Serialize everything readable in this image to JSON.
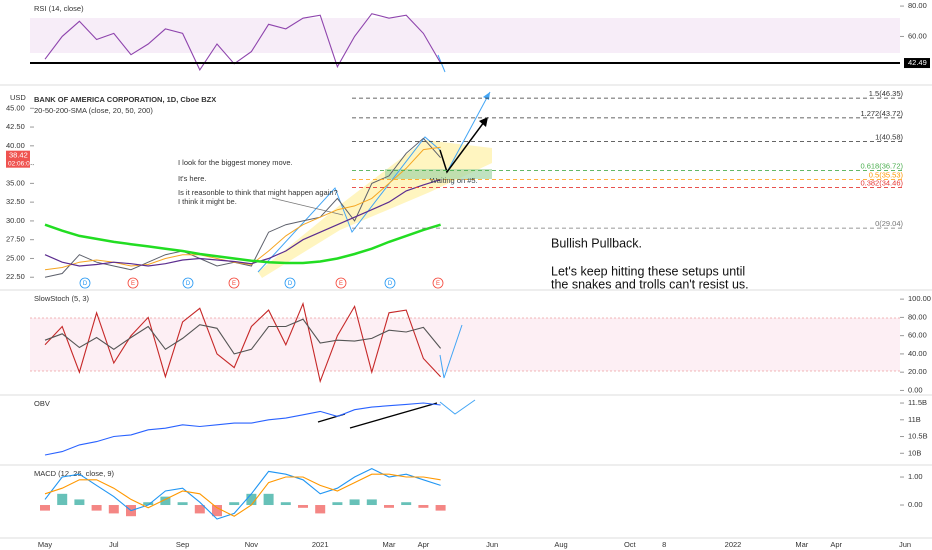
{
  "chart_data": [
    {
      "type": "line",
      "title": "RSI (14, close)",
      "series": [
        {
          "color": "#8e44ad",
          "values": [
            45,
            60,
            70,
            58,
            62,
            48,
            55,
            65,
            62,
            38,
            55,
            42,
            50,
            68,
            65,
            72,
            74,
            40,
            60,
            75,
            72,
            74,
            62,
            42.49,
            null,
            null,
            null,
            null,
            null,
            null,
            null,
            null,
            null,
            null,
            null,
            null,
            null,
            null,
            null,
            null,
            null,
            null,
            null,
            null,
            null,
            null,
            null,
            null,
            null,
            null,
            null
          ]
        }
      ],
      "ylim": [
        30,
        84
      ],
      "yticks": [
        {
          "value": 80,
          "label": "80.00"
        },
        {
          "value": 60,
          "label": "60.00"
        }
      ],
      "last_value": 42.49
    },
    {
      "type": "line",
      "title": "BANK OF AMERICA CORPORATION, 1D, Cboe BZX",
      "subtitle": "20-50-200-SMA (close, 20, 50, 200)",
      "currency": "USD",
      "series": [
        {
          "color": "#5d606b",
          "values": [
            22.5,
            23,
            25.5,
            24.5,
            24,
            23.5,
            24.5,
            25.5,
            26,
            25,
            24,
            24.5,
            24,
            28.5,
            29.5,
            30,
            30.5,
            33,
            30,
            35,
            36,
            39,
            41,
            38.42,
            null,
            null,
            null,
            null,
            null,
            null,
            null,
            null,
            null,
            null,
            null,
            null,
            null,
            null,
            null,
            null,
            null,
            null,
            null,
            null,
            null,
            null,
            null,
            null,
            null,
            null,
            null
          ]
        },
        {
          "color": "#f5a623",
          "values": [
            23.5,
            23.8,
            24.5,
            24.8,
            24.5,
            24,
            24.2,
            25,
            25.5,
            25.5,
            25,
            24.5,
            24.2,
            26,
            28,
            29.5,
            30.5,
            31.5,
            32,
            33,
            35,
            37,
            39.5,
            39.8,
            null,
            null,
            null,
            null,
            null,
            null,
            null,
            null,
            null,
            null,
            null,
            null,
            null,
            null,
            null,
            null,
            null,
            null,
            null,
            null,
            null,
            null,
            null,
            null,
            null,
            null,
            null
          ]
        },
        {
          "color": "#5b2c8f",
          "values": [
            25.5,
            24.5,
            24,
            24.2,
            24.5,
            24.3,
            24,
            24.3,
            24.8,
            25,
            24.8,
            24.6,
            24.3,
            25,
            26,
            27.5,
            28.5,
            29.5,
            30.5,
            31.5,
            32.5,
            34,
            34.8,
            35.5,
            null,
            null,
            null,
            null,
            null,
            null,
            null,
            null,
            null,
            null,
            null,
            null,
            null,
            null,
            null,
            null,
            null,
            null,
            null,
            null,
            null,
            null,
            null,
            null,
            null,
            null,
            null
          ]
        },
        {
          "color": "#22dd22",
          "values": [
            29.5,
            28.7,
            28,
            27.6,
            27.2,
            26.9,
            26.6,
            26.3,
            26,
            25.6,
            25.3,
            25,
            24.7,
            24.5,
            24.4,
            24.4,
            24.6,
            25,
            25.6,
            26.3,
            27.2,
            28,
            28.8,
            29.5,
            null,
            null,
            null,
            null,
            null,
            null,
            null,
            null,
            null,
            null,
            null,
            null,
            null,
            null,
            null,
            null,
            null,
            null,
            null,
            null,
            null,
            null,
            null,
            null,
            null,
            null,
            null
          ]
        }
      ],
      "ylim": [
        20.8,
        47.7
      ],
      "yticks": [
        {
          "value": 45,
          "label": "45.00"
        },
        {
          "value": 42.5,
          "label": "42.50"
        },
        {
          "value": 40,
          "label": "40.00"
        },
        {
          "value": 37.5,
          "label": "37.50"
        },
        {
          "value": 35,
          "label": "35.00"
        },
        {
          "value": 32.5,
          "label": "32.50"
        },
        {
          "value": 30,
          "label": "30.00"
        },
        {
          "value": 27.5,
          "label": "27.50"
        },
        {
          "value": 25,
          "label": "25.00"
        },
        {
          "value": 22.5,
          "label": "22.50"
        }
      ],
      "last_value": 38.42,
      "countdown": "02:06:03",
      "fib_levels": [
        {
          "label": "1.5(46.35)",
          "value": 46.35,
          "color": "#333333"
        },
        {
          "label": "1.272(43.72)",
          "value": 43.72,
          "color": "#333333"
        },
        {
          "label": "1(40.58)",
          "value": 40.58,
          "color": "#333333"
        },
        {
          "label": "0.618(36.72)",
          "value": 36.72,
          "color": "#4caf50"
        },
        {
          "label": "0.5(35.53)",
          "value": 35.53,
          "color": "#ff9800"
        },
        {
          "label": "0.382(34.46)",
          "value": 34.46,
          "color": "#e53935"
        },
        {
          "label": "0(29.04)",
          "value": 29.04,
          "color": "#777777"
        }
      ],
      "events": [
        "D",
        "E",
        "D",
        "E",
        "D",
        "E",
        "D",
        "E"
      ],
      "annotations": [
        "I look for the biggest money move.",
        "It's here.",
        "Is it reasonble to think that might happen again?",
        "I think it might be.",
        "Waiting on #5.",
        "Bullish Pullback.",
        "Let's keep hitting these setups until",
        "the snakes and trolls can't resist us."
      ]
    },
    {
      "type": "line",
      "title": "SlowStoch (5, 3)",
      "series": [
        {
          "color": "#c62828",
          "values": [
            50,
            70,
            20,
            85,
            30,
            60,
            80,
            15,
            75,
            90,
            40,
            25,
            70,
            88,
            50,
            95,
            10,
            60,
            92,
            20,
            85,
            88,
            35,
            15,
            null,
            null,
            null,
            null,
            null,
            null,
            null,
            null,
            null,
            null,
            null,
            null,
            null,
            null,
            null,
            null,
            null,
            null,
            null,
            null,
            null,
            null,
            null,
            null,
            null,
            null,
            null
          ]
        },
        {
          "color": "#555555",
          "values": [
            55,
            62,
            47,
            58,
            45,
            58,
            70,
            45,
            57,
            72,
            68,
            40,
            45,
            70,
            70,
            78,
            52,
            55,
            54,
            57,
            66,
            64,
            69,
            46,
            null,
            null,
            null,
            null,
            null,
            null,
            null,
            null,
            null,
            null,
            null,
            null,
            null,
            null,
            null,
            null,
            null,
            null,
            null,
            null,
            null,
            null,
            null,
            null,
            null,
            null,
            null
          ]
        }
      ],
      "ylim": [
        -5,
        110
      ],
      "yticks": [
        {
          "value": 100,
          "label": "100.00"
        },
        {
          "value": 80,
          "label": "80.00"
        },
        {
          "value": 60,
          "label": "60.00"
        },
        {
          "value": 40,
          "label": "40.00"
        },
        {
          "value": 20,
          "label": "20.00"
        },
        {
          "value": 0,
          "label": "0.00"
        }
      ]
    },
    {
      "type": "line",
      "title": "OBV",
      "series": [
        {
          "color": "#2962ff",
          "values": [
            9.95,
            10.05,
            10.25,
            10.35,
            10.5,
            10.55,
            10.7,
            10.75,
            10.85,
            10.8,
            10.85,
            10.9,
            10.9,
            11.0,
            11.05,
            11.15,
            11.25,
            11.1,
            11.3,
            11.38,
            11.42,
            11.46,
            11.5,
            11.44,
            null,
            null,
            null,
            null,
            null,
            null,
            null,
            null,
            null,
            null,
            null,
            null,
            null,
            null,
            null,
            null,
            null,
            null,
            null,
            null,
            null,
            null,
            null,
            null,
            null,
            null,
            null
          ]
        }
      ],
      "ylim": [
        9.65,
        11.74
      ],
      "yticks": [
        {
          "value": 11.5,
          "label": "11.5B"
        },
        {
          "value": 11,
          "label": "11B"
        },
        {
          "value": 10.5,
          "label": "10.5B"
        },
        {
          "value": 10,
          "label": "10B"
        }
      ]
    },
    {
      "type": "line",
      "title": "MACD (12, 26, close, 9)",
      "categories": [
        "May",
        null,
        null,
        null,
        "Jul",
        null,
        null,
        null,
        "Sep",
        null,
        null,
        null,
        "Nov",
        null,
        null,
        null,
        "2021",
        null,
        null,
        null,
        "Mar",
        null,
        "Apr",
        null,
        null,
        null,
        "Jun",
        null,
        null,
        null,
        "Aug",
        null,
        null,
        null,
        "Oct",
        null,
        "8",
        null,
        null,
        null,
        "2022",
        null,
        null,
        null,
        "Mar",
        null,
        "Apr",
        null,
        null,
        null,
        "Jun"
      ],
      "series": [
        {
          "style": "histogram",
          "positive_color": "#26a69a",
          "negative_color": "#ef5350",
          "values": [
            -0.2,
            0.4,
            0.2,
            -0.2,
            -0.3,
            -0.4,
            0.1,
            0.3,
            0.1,
            -0.3,
            -0.4,
            0.1,
            0.4,
            0.4,
            0.1,
            -0.1,
            -0.3,
            0.1,
            0.2,
            0.2,
            -0.1,
            0.1,
            -0.1,
            -0.2,
            null,
            null,
            null,
            null,
            null,
            null,
            null,
            null,
            null,
            null,
            null,
            null,
            null,
            null,
            null,
            null,
            null,
            null,
            null,
            null,
            null,
            null,
            null,
            null,
            null,
            null,
            null
          ]
        },
        {
          "color": "#2196f3",
          "values": [
            0.2,
            1.0,
            1.1,
            0.7,
            0.3,
            -0.2,
            0,
            0.5,
            0.6,
            0.1,
            -0.5,
            -0.3,
            0.4,
            1.2,
            1.1,
            0.9,
            0.4,
            0.6,
            1.0,
            1.3,
            1.0,
            1.1,
            0.9,
            0.7,
            null,
            null,
            null,
            null,
            null,
            null,
            null,
            null,
            null,
            null,
            null,
            null,
            null,
            null,
            null,
            null,
            null,
            null,
            null,
            null,
            null,
            null,
            null,
            null,
            null,
            null,
            null
          ]
        },
        {
          "color": "#ff9800",
          "values": [
            0.4,
            0.6,
            0.9,
            0.9,
            0.6,
            0.2,
            -0.1,
            0.2,
            0.5,
            0.4,
            -0.1,
            -0.4,
            0,
            0.8,
            1.0,
            1.0,
            0.7,
            0.5,
            0.8,
            1.1,
            1.1,
            1.0,
            1.0,
            0.9,
            null,
            null,
            null,
            null,
            null,
            null,
            null,
            null,
            null,
            null,
            null,
            null,
            null,
            null,
            null,
            null,
            null,
            null,
            null,
            null,
            null,
            null,
            null,
            null,
            null,
            null,
            null
          ]
        }
      ],
      "ylim": [
        -1.25,
        1.43
      ],
      "yticks": [
        {
          "value": 1,
          "label": "1.00"
        },
        {
          "value": 0,
          "label": "0.00"
        }
      ]
    }
  ]
}
